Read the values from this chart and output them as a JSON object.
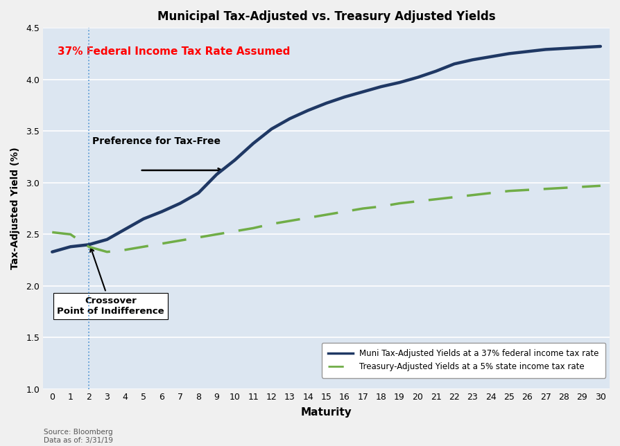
{
  "title": "Municipal Tax-Adjusted vs. Treasury Adjusted Yields",
  "xlabel": "Maturity",
  "ylabel": "Tax-Adjusted Yield (%)",
  "ylim": [
    1.0,
    4.5
  ],
  "xlim": [
    -0.5,
    30.5
  ],
  "plot_bg_color": "#dce6f1",
  "fig_bg_color": "#f0f0f0",
  "grid_color": "#ffffff",
  "source_text": "Source: Bloomberg\nData as of: 3/31/19",
  "annotation_tax_rate": "37% Federal Income Tax Rate Assumed",
  "annotation_preference": "Preference for Tax-Free",
  "annotation_crossover": "Crossover\nPoint of Indifference",
  "vline_x": 2,
  "vline_color": "#5B9BD5",
  "muni_color": "#1F3864",
  "treasury_color": "#70AD47",
  "legend_muni": "Muni Tax-Adjusted Yields at a 37% federal income tax rate",
  "legend_treasury": "Treasury-Adjusted Yields at a 5% state income tax rate",
  "muni_x": [
    0,
    1,
    2,
    3,
    4,
    5,
    6,
    7,
    8,
    9,
    10,
    11,
    12,
    13,
    14,
    15,
    16,
    17,
    18,
    19,
    20,
    21,
    22,
    23,
    24,
    25,
    26,
    27,
    28,
    29,
    30
  ],
  "muni_y": [
    2.33,
    2.38,
    2.4,
    2.45,
    2.55,
    2.65,
    2.72,
    2.8,
    2.9,
    3.08,
    3.22,
    3.38,
    3.52,
    3.62,
    3.7,
    3.77,
    3.83,
    3.88,
    3.93,
    3.97,
    4.02,
    4.08,
    4.15,
    4.19,
    4.22,
    4.25,
    4.27,
    4.29,
    4.3,
    4.31,
    4.32
  ],
  "treasury_x": [
    0,
    1,
    2,
    3,
    4,
    5,
    6,
    7,
    8,
    9,
    10,
    11,
    12,
    13,
    14,
    15,
    16,
    17,
    18,
    19,
    20,
    21,
    22,
    23,
    24,
    25,
    26,
    27,
    28,
    29,
    30
  ],
  "treasury_y": [
    2.52,
    2.5,
    2.38,
    2.33,
    2.35,
    2.38,
    2.41,
    2.44,
    2.47,
    2.5,
    2.53,
    2.56,
    2.6,
    2.63,
    2.66,
    2.69,
    2.72,
    2.75,
    2.77,
    2.8,
    2.82,
    2.84,
    2.86,
    2.88,
    2.9,
    2.92,
    2.93,
    2.94,
    2.95,
    2.96,
    2.97
  ],
  "xticks": [
    0,
    1,
    2,
    3,
    4,
    5,
    6,
    7,
    8,
    9,
    10,
    11,
    12,
    13,
    14,
    15,
    16,
    17,
    18,
    19,
    20,
    21,
    22,
    23,
    24,
    25,
    26,
    27,
    28,
    29,
    30
  ],
  "yticks": [
    1.0,
    1.5,
    2.0,
    2.5,
    3.0,
    3.5,
    4.0,
    4.5
  ]
}
